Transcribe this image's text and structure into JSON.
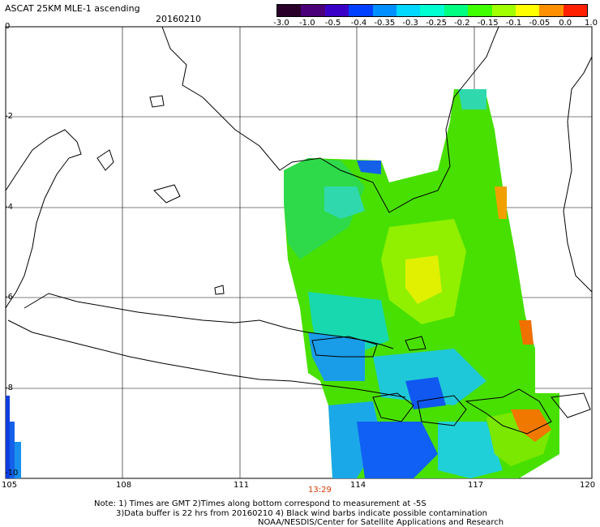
{
  "header": {
    "title": "ASCAT 25KM MLE-1 ascending",
    "date": "20160210"
  },
  "colorbar": {
    "labels": [
      "-3.0",
      "-1.0",
      "-0.5",
      "-0.4",
      "-0.35",
      "-0.3",
      "-0.25",
      "-0.2",
      "-0.15",
      "-0.1",
      "-0.05",
      "0.0",
      "1.0"
    ],
    "colors": [
      "#2a002a",
      "#4b007a",
      "#3b00c8",
      "#0040ff",
      "#0090ff",
      "#00d8ff",
      "#00ffd0",
      "#00ff80",
      "#40ff00",
      "#a0ff00",
      "#ffff00",
      "#ff9000",
      "#ff2000"
    ]
  },
  "axes": {
    "y_ticks": [
      "0",
      "-2",
      "-4",
      "-6",
      "-8",
      "-10"
    ],
    "x_ticks": [
      "105",
      "108",
      "111",
      "114",
      "117",
      "120"
    ]
  },
  "time_label": "13:29",
  "notes": {
    "line1": "Note: 1) Times are GMT 2)Times along bottom correspond to measurement at -5S",
    "line2": "3)Data buffer is 22 hrs from 20160210 4) Black wind barbs indicate possible contamination",
    "line3": "NOAA/NESDIS/Center for Satellite Applications and Research"
  }
}
